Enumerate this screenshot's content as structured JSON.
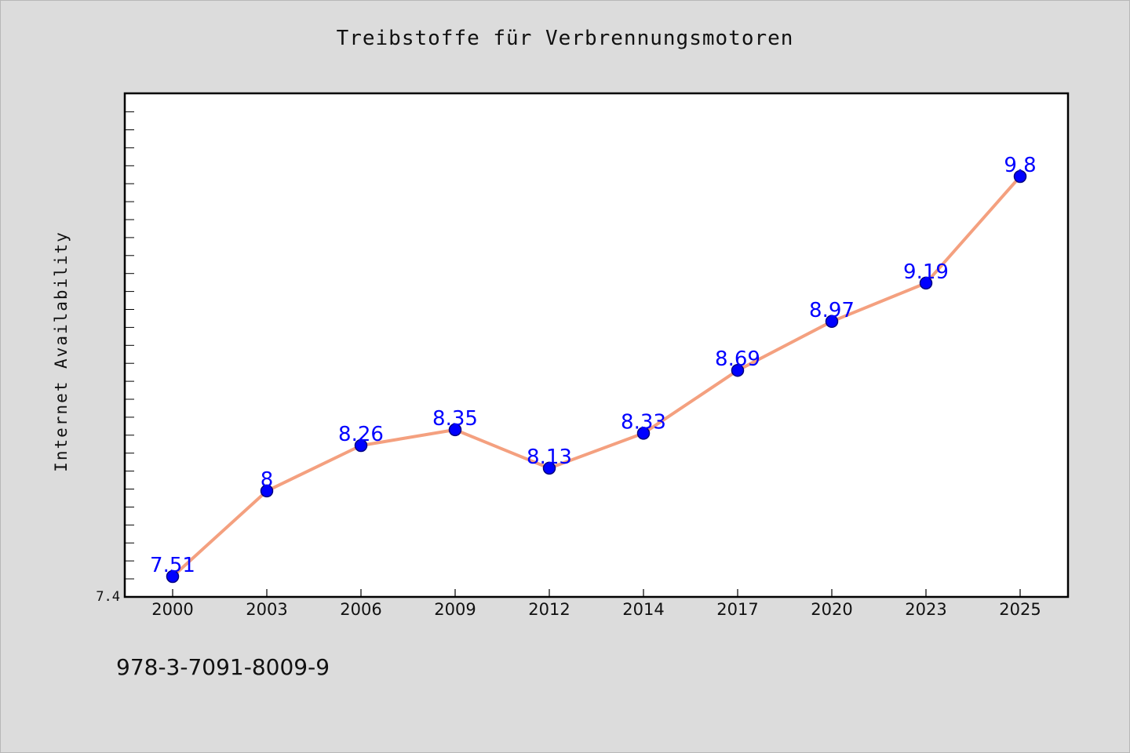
{
  "chart_data": {
    "type": "line",
    "title": "Treibstoffe für Verbrennungsmotoren",
    "xlabel": "",
    "ylabel": "Internet Availability",
    "categories": [
      "2000",
      "2003",
      "2006",
      "2009",
      "2012",
      "2014",
      "2017",
      "2020",
      "2023",
      "2025"
    ],
    "series": [
      {
        "values": [
          7.51,
          8,
          8.26,
          8.35,
          8.13,
          8.33,
          8.69,
          8.97,
          9.19,
          9.8
        ]
      }
    ],
    "data_labels": [
      "7.51",
      "8",
      "8.26",
      "8.35",
      "8.13",
      "8.33",
      "8.69",
      "8.97",
      "9.19",
      "9.8"
    ],
    "y_tick_labels": [
      "7.4"
    ],
    "ylim": [
      7.4,
      10.2
    ],
    "grid": false,
    "legend": "none",
    "colors": {
      "line": "#f4a07f",
      "marker": "#0000ff",
      "marker_edge": "#000080",
      "data_label": "#0000ff",
      "plot_background": "#ffffff",
      "page_background": "#dcdcdc"
    }
  },
  "footer": {
    "code": "978-3-7091-8009-9"
  }
}
